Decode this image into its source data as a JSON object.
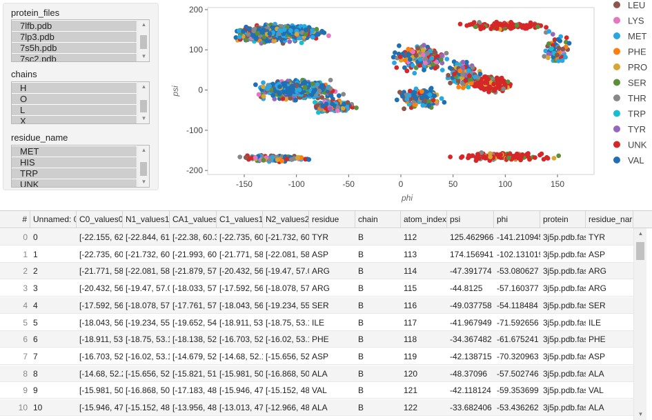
{
  "filters": {
    "protein_files": {
      "label": "protein_files",
      "options": [
        "7lfb.pdb",
        "7lp3.pdb",
        "7s5h.pdb",
        "7sc2.pdb"
      ]
    },
    "chains": {
      "label": "chains",
      "options": [
        "H",
        "O",
        "L",
        "X"
      ]
    },
    "residue_name": {
      "label": "residue_name",
      "options": [
        "MET",
        "HIS",
        "TRP",
        "UNK"
      ]
    }
  },
  "chart_data": {
    "type": "scatter",
    "xlabel": "phi",
    "ylabel": "psi",
    "xlim": [
      -185,
      185
    ],
    "ylim": [
      -210,
      205
    ],
    "xticks": [
      -150,
      -100,
      -50,
      0,
      50,
      100,
      150
    ],
    "yticks": [
      200,
      100,
      0,
      -100,
      -200
    ],
    "grid": false,
    "legend_position": "right",
    "series": [
      {
        "name": "LEU",
        "color": "#8c564b"
      },
      {
        "name": "LYS",
        "color": "#e377c2"
      },
      {
        "name": "MET",
        "color": "#29a7e3"
      },
      {
        "name": "PHE",
        "color": "#ff7f0e"
      },
      {
        "name": "PRO",
        "color": "#d8a532"
      },
      {
        "name": "SER",
        "color": "#5d8f3a"
      },
      {
        "name": "THR",
        "color": "#888888"
      },
      {
        "name": "TRP",
        "color": "#17becf"
      },
      {
        "name": "TYR",
        "color": "#9467bd"
      },
      {
        "name": "UNK",
        "color": "#d62728"
      },
      {
        "name": "VAL",
        "color": "#1f6fb4"
      }
    ]
  },
  "table": {
    "columns": [
      "#",
      "Unnamed: 0",
      "C0_values0",
      "N1_values1",
      "CA1_values",
      "C1_values1",
      "N2_values2",
      "residue",
      "chain",
      "atom_index",
      "psi",
      "phi",
      "protein",
      "residue_nar"
    ],
    "rows": [
      [
        "0",
        "0",
        "[-22.155, 62",
        "[-22.844, 61",
        "[-22.38, 60.3",
        "[-22.735, 60",
        "[-21.732, 60",
        "TYR",
        "B",
        "112",
        "125.462966",
        "-141.210945",
        "3j5p.pdb.fas",
        "TYR"
      ],
      [
        "1",
        "1",
        "[-22.735, 60",
        "[-21.732, 60",
        "[-21.993, 60",
        "[-21.771, 58",
        "[-22.081, 58",
        "ASP",
        "B",
        "113",
        "174.156941",
        "-102.131019",
        "3j5p.pdb.fas",
        "ASP"
      ],
      [
        "2",
        "2",
        "[-21.771, 58",
        "[-22.081, 58",
        "[-21.879, 57",
        "[-20.432, 56",
        "[-19.47, 57.0",
        "ARG",
        "B",
        "114",
        "-47.391774",
        "-53.080627",
        "3j5p.pdb.fas",
        "ARG"
      ],
      [
        "3",
        "3",
        "[-20.432, 56",
        "[-19.47, 57.0",
        "[-18.033, 57",
        "[-17.592, 56",
        "[-18.078, 57",
        "ARG",
        "B",
        "115",
        "-44.8125",
        "-57.160377",
        "3j5p.pdb.fas",
        "ARG"
      ],
      [
        "4",
        "4",
        "[-17.592, 56",
        "[-18.078, 57",
        "[-17.761, 57",
        "[-18.043, 56",
        "[-19.234, 55",
        "SER",
        "B",
        "116",
        "-49.037758",
        "-54.118484",
        "3j5p.pdb.fas",
        "SER"
      ],
      [
        "5",
        "5",
        "[-18.043, 56",
        "[-19.234, 55",
        "[-19.652, 54",
        "[-18.911, 53",
        "[-18.75, 53.1",
        "ILE",
        "B",
        "117",
        "-41.967949",
        "-71.592656",
        "3j5p.pdb.fas",
        "ILE"
      ],
      [
        "6",
        "6",
        "[-18.911, 53",
        "[-18.75, 53.1",
        "[-18.138, 52",
        "[-16.703, 52",
        "[-16.02, 53.1",
        "PHE",
        "B",
        "118",
        "-34.367482",
        "-61.675241",
        "3j5p.pdb.fas",
        "PHE"
      ],
      [
        "7",
        "7",
        "[-16.703, 52",
        "[-16.02, 53.1",
        "[-14.679, 52",
        "[-14.68, 52.1",
        "[-15.656, 52",
        "ASP",
        "B",
        "119",
        "-42.138715",
        "-70.320963",
        "3j5p.pdb.fas",
        "ASP"
      ],
      [
        "8",
        "8",
        "[-14.68, 52.2",
        "[-15.656, 52",
        "[-15.821, 51",
        "[-15.981, 50",
        "[-16.868, 50",
        "ALA",
        "B",
        "120",
        "-48.37096",
        "-57.502746",
        "3j5p.pdb.fas",
        "ALA"
      ],
      [
        "9",
        "9",
        "[-15.981, 50",
        "[-16.868, 50",
        "[-17.183, 48",
        "[-15.946, 47",
        "[-15.152, 48",
        "VAL",
        "B",
        "121",
        "-42.118124",
        "-59.353699",
        "3j5p.pdb.fas",
        "VAL"
      ],
      [
        "10",
        "10",
        "[-15.946, 47",
        "[-15.152, 48",
        "[-13.956, 48",
        "[-13.013, 47",
        "[-12.966, 48",
        "ALA",
        "B",
        "122",
        "-33.682406",
        "-53.436262",
        "3j5p.pdb.fas",
        "ALA"
      ]
    ]
  }
}
